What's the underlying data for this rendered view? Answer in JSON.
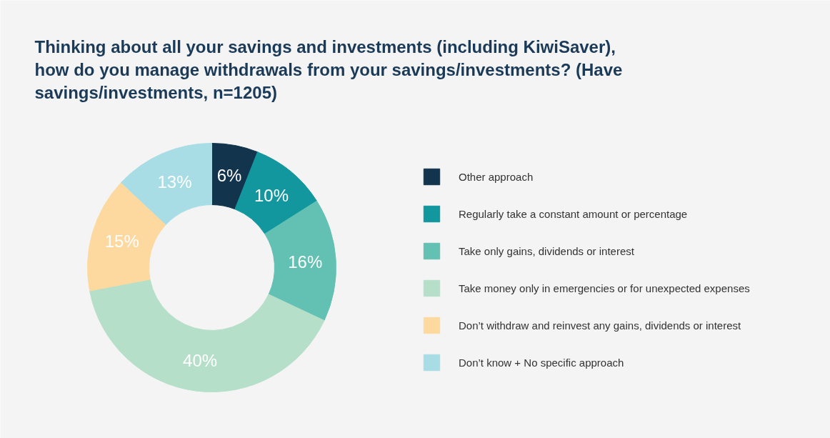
{
  "chart_data": {
    "type": "donut",
    "title": "Thinking about all your savings and investments (including KiwiSaver), how do you manage withdrawals from your savings/investments? (Have savings/investments, n=1205)",
    "categories": [
      "Other approach",
      "Regularly take a constant amount or percentage",
      "Take only gains, dividends or interest",
      "Take money only in emergencies or for unexpected expenses",
      "Don’t withdraw and reinvest any gains, dividends or interest",
      "Don’t know + No specific approach"
    ],
    "values": [
      6,
      10,
      16,
      40,
      15,
      13
    ],
    "colors": [
      "#12344d",
      "#12979e",
      "#63c1b3",
      "#b5dfc9",
      "#fdd9a0",
      "#a9dde6"
    ],
    "value_labels": [
      "6%",
      "10%",
      "16%",
      "40%",
      "15%",
      "13%"
    ],
    "legend": "right"
  }
}
